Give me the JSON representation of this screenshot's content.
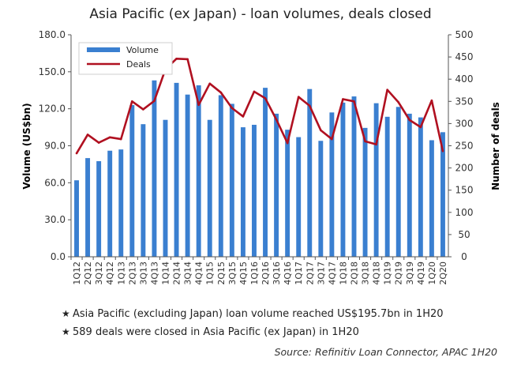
{
  "chart_data": {
    "type": "bar+line",
    "title": "Asia Pacific (ex Japan) - loan volumes, deals closed",
    "categories": [
      "1Q12",
      "2Q12",
      "3Q12",
      "4Q12",
      "1Q13",
      "2Q13",
      "3Q13",
      "4Q13",
      "1Q14",
      "2Q14",
      "3Q14",
      "4Q14",
      "1Q15",
      "2Q15",
      "3Q15",
      "4Q15",
      "1Q16",
      "2Q16",
      "3Q16",
      "4Q16",
      "1Q17",
      "2Q17",
      "3Q17",
      "4Q17",
      "1Q18",
      "2Q18",
      "3Q18",
      "4Q18",
      "1Q19",
      "2Q19",
      "3Q19",
      "4Q19",
      "1Q20",
      "2Q20"
    ],
    "series": [
      {
        "name": "Volume",
        "type": "bar",
        "axis": "left",
        "color": "#3a7fd0",
        "values": [
          62,
          80,
          77.5,
          86,
          87,
          123,
          107.5,
          143,
          111,
          141,
          131.5,
          139,
          111,
          131,
          124,
          105,
          107,
          137,
          116,
          103,
          97,
          136,
          94,
          117,
          125,
          130,
          104.5,
          124.5,
          113.5,
          121.5,
          116,
          113,
          94.5,
          101
        ]
      },
      {
        "name": "Deals",
        "type": "line",
        "axis": "right",
        "color": "#b01020",
        "values": [
          233,
          275,
          257,
          269,
          265,
          350,
          332,
          351,
          422,
          446,
          445,
          342,
          390,
          370,
          335,
          316,
          372,
          357,
          309,
          256,
          360,
          340,
          285,
          265,
          355,
          350,
          260,
          253,
          376,
          348,
          308,
          292,
          352,
          238
        ]
      }
    ],
    "ylabel": "Volume (US$bn)",
    "ylabel_right": "Number of deals",
    "ylim": [
      0,
      180
    ],
    "yticks": [
      "0.0",
      "30.0",
      "60.0",
      "90.0",
      "120.0",
      "150.0",
      "180.0"
    ],
    "ylim_right": [
      0,
      500
    ],
    "yticks_right": [
      "0",
      "50",
      "100",
      "150",
      "200",
      "250",
      "300",
      "350",
      "400",
      "450",
      "500"
    ],
    "legend_position": "top-left",
    "grid": false
  },
  "notes": [
    "Asia Pacific (excluding Japan) loan volume reached US$195.7bn in 1H20",
    "589 deals were closed in Asia Pacific (ex Japan) in 1H20"
  ],
  "bullet_symbol": "★",
  "source": "Source: Refinitiv Loan Connector, APAC 1H20"
}
